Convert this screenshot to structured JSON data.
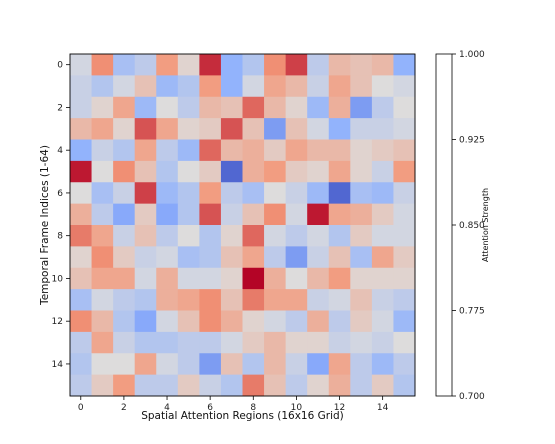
{
  "chart_data": {
    "type": "heatmap",
    "title": "",
    "xlabel": "Spatial Attention Regions (16x16 Grid)",
    "ylabel": "Temporal Frame Indices (1-64)",
    "colorbar_label": "Attention Strength",
    "colormap": "coolwarm",
    "vmin": 0.7,
    "vmax": 1.0,
    "xticks": [
      "0",
      "2",
      "4",
      "6",
      "8",
      "10",
      "12",
      "14"
    ],
    "yticks": [
      "0",
      "2",
      "4",
      "6",
      "8",
      "10",
      "12",
      "14"
    ],
    "colorbar_ticks": [
      "0.700",
      "0.775",
      "0.850",
      "0.925",
      "1.000"
    ],
    "values": [
      [
        0.84,
        0.93,
        0.8,
        0.82,
        0.92,
        0.86,
        0.98,
        0.78,
        0.81,
        0.93,
        0.97,
        0.82,
        0.89,
        0.88,
        0.89,
        0.78
      ],
      [
        0.83,
        0.81,
        0.84,
        0.88,
        0.79,
        0.81,
        0.92,
        0.78,
        0.84,
        0.91,
        0.89,
        0.83,
        0.91,
        0.88,
        0.85,
        0.84
      ],
      [
        0.83,
        0.86,
        0.91,
        0.79,
        0.85,
        0.82,
        0.89,
        0.88,
        0.95,
        0.89,
        0.86,
        0.79,
        0.9,
        0.76,
        0.82,
        0.85
      ],
      [
        0.89,
        0.91,
        0.86,
        0.96,
        0.91,
        0.86,
        0.87,
        0.96,
        0.88,
        0.76,
        0.88,
        0.84,
        0.78,
        0.83,
        0.83,
        0.84
      ],
      [
        0.78,
        0.83,
        0.81,
        0.91,
        0.82,
        0.79,
        0.95,
        0.89,
        0.9,
        0.87,
        0.91,
        0.89,
        0.89,
        0.86,
        0.87,
        0.88
      ],
      [
        0.99,
        0.85,
        0.93,
        0.88,
        0.81,
        0.85,
        0.87,
        0.72,
        0.9,
        0.92,
        0.87,
        0.86,
        0.91,
        0.86,
        0.83,
        0.92
      ],
      [
        0.85,
        0.8,
        0.83,
        0.97,
        0.79,
        0.81,
        0.92,
        0.82,
        0.8,
        0.85,
        0.83,
        0.79,
        0.72,
        0.8,
        0.79,
        0.83
      ],
      [
        0.9,
        0.82,
        0.77,
        0.87,
        0.77,
        0.81,
        0.96,
        0.83,
        0.88,
        0.93,
        0.84,
        0.99,
        0.91,
        0.9,
        0.87,
        0.84
      ],
      [
        0.94,
        0.91,
        0.83,
        0.88,
        0.82,
        0.85,
        0.81,
        0.86,
        0.95,
        0.84,
        0.82,
        0.84,
        0.81,
        0.87,
        0.84,
        0.84
      ],
      [
        0.86,
        0.93,
        0.87,
        0.83,
        0.84,
        0.8,
        0.81,
        0.88,
        0.91,
        0.82,
        0.76,
        0.83,
        0.88,
        0.8,
        0.91,
        0.87
      ],
      [
        0.88,
        0.91,
        0.91,
        0.84,
        0.9,
        0.84,
        0.84,
        0.86,
        1.0,
        0.9,
        0.85,
        0.89,
        0.92,
        0.86,
        0.86,
        0.86
      ],
      [
        0.8,
        0.84,
        0.82,
        0.81,
        0.9,
        0.91,
        0.93,
        0.88,
        0.94,
        0.91,
        0.91,
        0.83,
        0.84,
        0.88,
        0.83,
        0.82
      ],
      [
        0.93,
        0.89,
        0.81,
        0.77,
        0.84,
        0.88,
        0.93,
        0.9,
        0.86,
        0.84,
        0.82,
        0.9,
        0.82,
        0.87,
        0.84,
        0.79
      ],
      [
        0.82,
        0.91,
        0.83,
        0.81,
        0.81,
        0.82,
        0.82,
        0.84,
        0.87,
        0.89,
        0.86,
        0.86,
        0.83,
        0.84,
        0.83,
        0.85
      ],
      [
        0.81,
        0.85,
        0.85,
        0.91,
        0.84,
        0.82,
        0.76,
        0.88,
        0.81,
        0.89,
        0.83,
        0.77,
        0.91,
        0.82,
        0.79,
        0.82
      ],
      [
        0.82,
        0.87,
        0.92,
        0.82,
        0.82,
        0.87,
        0.83,
        0.81,
        0.94,
        0.88,
        0.82,
        0.86,
        0.9,
        0.82,
        0.87,
        0.81
      ]
    ]
  }
}
